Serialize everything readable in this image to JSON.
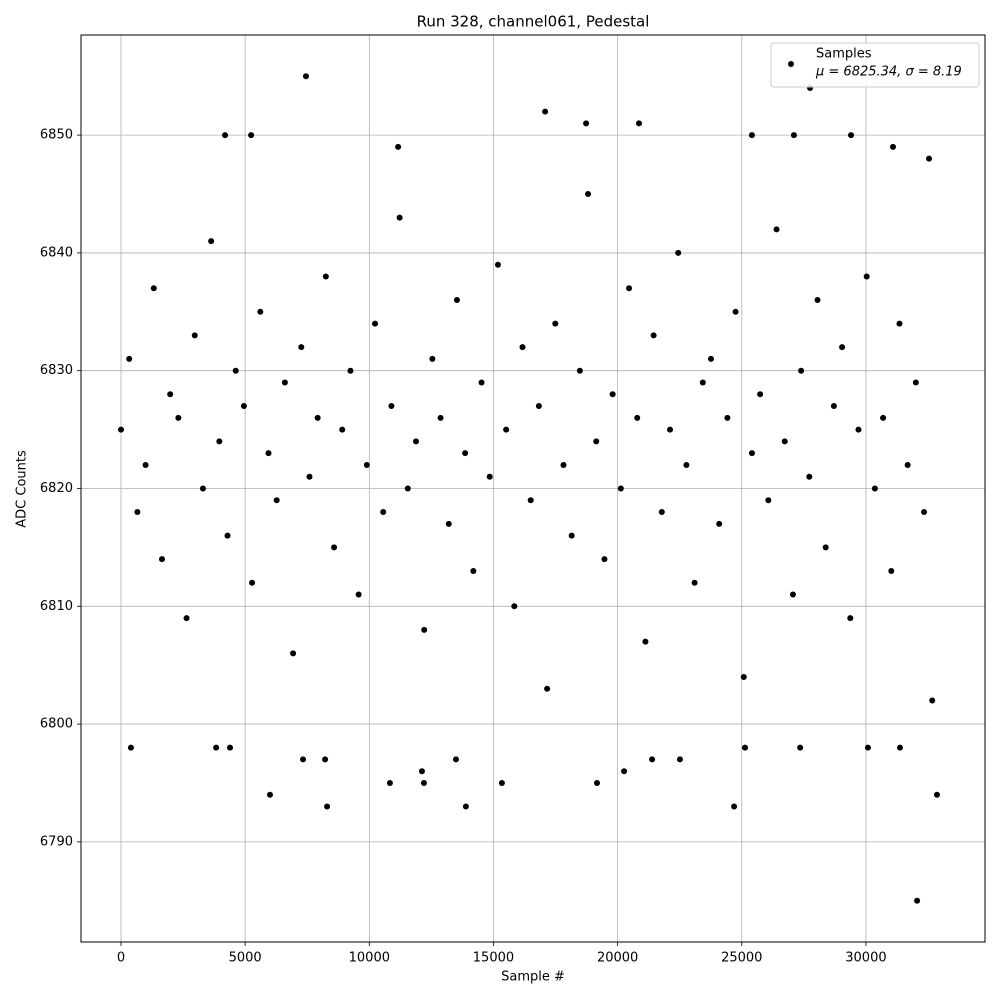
{
  "chart_data": {
    "type": "scatter",
    "title": "Run 328, channel061, Pedestal",
    "xlabel": "Sample #",
    "ylabel": "ADC Counts",
    "xlim": [
      -1611,
      34795
    ],
    "ylim": [
      6781.5,
      6858.5
    ],
    "xticks": [
      0,
      5000,
      10000,
      15000,
      20000,
      25000,
      30000
    ],
    "yticks": [
      6790,
      6800,
      6810,
      6820,
      6830,
      6840,
      6850
    ],
    "grid": true,
    "legend": "upper right",
    "series": [
      {
        "name": "Samples",
        "color": "#000000",
        "legend_note": "μ = 6825.34, σ = 8.19",
        "x": [
          7450,
          8300,
          13890,
          24690,
          32860,
          32060,
          6000,
          17080,
          18730,
          20860,
          27750,
          4190,
          5240,
          25410,
          27100,
          29400,
          31090,
          32540,
          11160,
          400,
          7330,
          8220,
          10830,
          12200,
          15340,
          19170,
          20260,
          22510,
          21390,
          3830,
          4390,
          25130,
          27350,
          30080,
          31370,
          13490,
          12120,
          0,
          330,
          660,
          990,
          1320,
          1650,
          1980,
          2310,
          2640,
          2970,
          3300,
          3630,
          3960,
          4290,
          4620,
          4950,
          5280,
          5610,
          5940,
          6270,
          6600,
          6930,
          7260,
          7590,
          7920,
          8250,
          8580,
          8910,
          9240,
          9570,
          9900,
          10230,
          10560,
          10890,
          11220,
          11550,
          11880,
          12210,
          12540,
          12870,
          13200,
          13530,
          13860,
          14190,
          14520,
          14850,
          15180,
          15510,
          15840,
          16170,
          16500,
          16830,
          17160,
          17490,
          17820,
          18150,
          18480,
          18810,
          19140,
          19470,
          19800,
          20130,
          20460,
          20790,
          21120,
          21450,
          21780,
          22110,
          22440,
          22770,
          23100,
          23430,
          23760,
          24090,
          24420,
          24750,
          25080,
          25410,
          25740,
          26070,
          26400,
          26730,
          27060,
          27390,
          27720,
          28050,
          28380,
          28710,
          29040,
          29370,
          29700,
          30030,
          30360,
          30690,
          31020,
          31350,
          31680,
          32010,
          32340,
          32670
        ],
        "values": [
          6855,
          6793,
          6793,
          6793,
          6794,
          6785,
          6794,
          6852,
          6851,
          6851,
          6854,
          6850,
          6850,
          6850,
          6850,
          6850,
          6849,
          6848,
          6849,
          6798,
          6797,
          6797,
          6795,
          6795,
          6795,
          6795,
          6796,
          6797,
          6797,
          6798,
          6798,
          6798,
          6798,
          6798,
          6798,
          6797,
          6796,
          6825,
          6831,
          6818,
          6822,
          6837,
          6814,
          6828,
          6826,
          6809,
          6833,
          6820,
          6841,
          6824,
          6816,
          6830,
          6827,
          6812,
          6835,
          6823,
          6819,
          6829,
          6806,
          6832,
          6821,
          6826,
          6838,
          6815,
          6825,
          6830,
          6811,
          6822,
          6834,
          6818,
          6827,
          6843,
          6820,
          6824,
          6808,
          6831,
          6826,
          6817,
          6836,
          6823,
          6813,
          6829,
          6821,
          6839,
          6825,
          6810,
          6832,
          6819,
          6827,
          6803,
          6834,
          6822,
          6816,
          6830,
          6845,
          6824,
          6814,
          6828,
          6820,
          6837,
          6826,
          6807,
          6833,
          6818,
          6825,
          6840,
          6822,
          6812,
          6829,
          6831,
          6817,
          6826,
          6835,
          6804,
          6823,
          6828,
          6819,
          6842,
          6824,
          6811,
          6830,
          6821,
          6836,
          6815,
          6827,
          6832,
          6809,
          6825,
          6838,
          6820,
          6826,
          6813,
          6834,
          6822,
          6829,
          6818,
          6802
        ]
      }
    ]
  }
}
